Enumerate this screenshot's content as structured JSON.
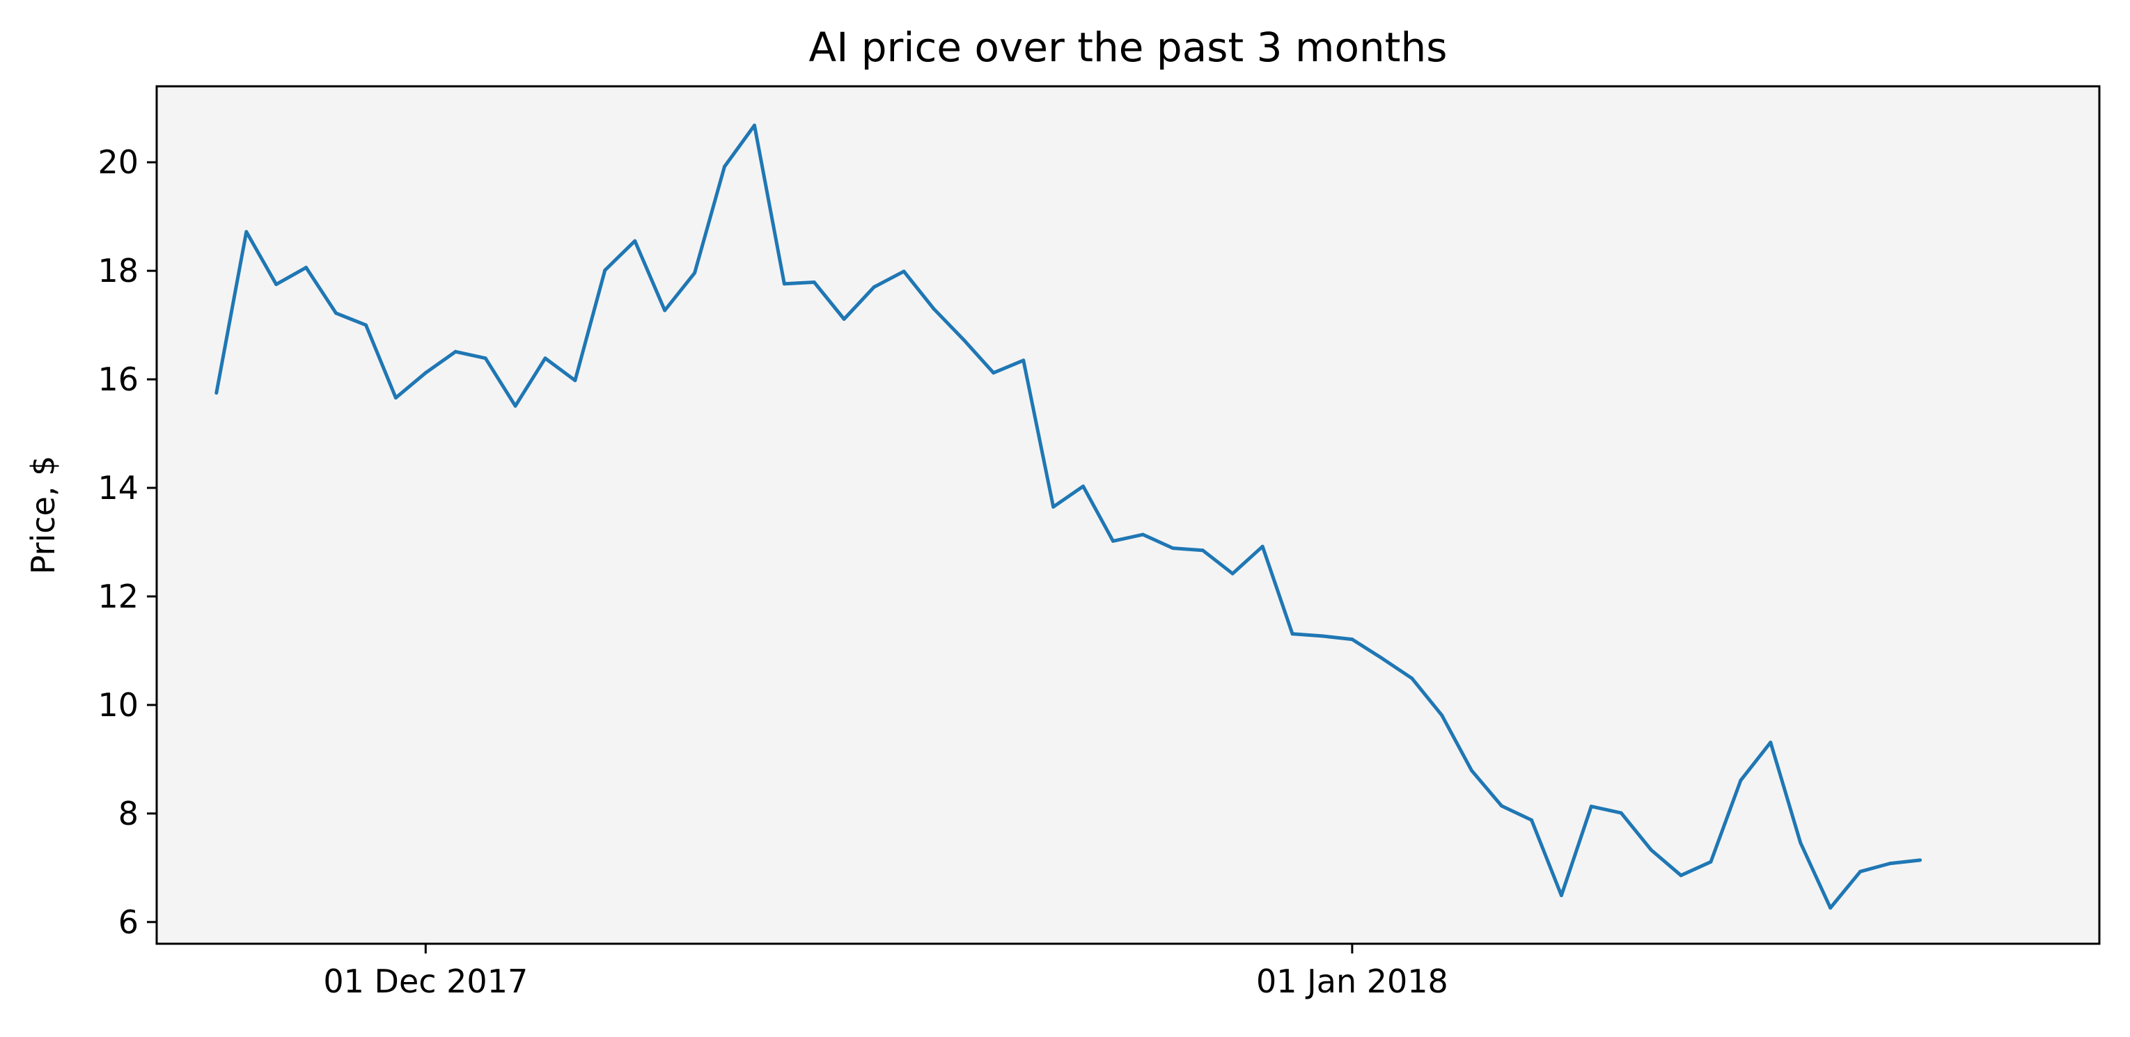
{
  "chart_data": {
    "type": "line",
    "title": "AI price over the past 3 months",
    "xlabel": "",
    "ylabel": "Price, $",
    "xlim": [
      "2017-11-22",
      "2018-01-26"
    ],
    "ylim": [
      5.6,
      21.4
    ],
    "x_ticks": [
      {
        "value": "2017-12-01",
        "label": "01 Dec 2017"
      },
      {
        "value": "2018-01-01",
        "label": "01 Jan 2018"
      }
    ],
    "y_ticks": [
      6,
      8,
      10,
      12,
      14,
      16,
      18,
      20
    ],
    "grid": false,
    "legend": "none",
    "colors": {
      "line": "#1f77b4",
      "plot_background": "#f4f4f4",
      "axes": "#000000"
    },
    "series": [
      {
        "x": [
          "2017-11-24",
          "2017-11-25",
          "2017-11-26",
          "2017-11-27",
          "2017-11-28",
          "2017-11-29",
          "2017-11-30",
          "2017-12-01",
          "2017-12-02",
          "2017-12-03",
          "2017-12-04",
          "2017-12-05",
          "2017-12-06",
          "2017-12-07",
          "2017-12-08",
          "2017-12-09",
          "2017-12-10",
          "2017-12-11",
          "2017-12-12",
          "2017-12-13",
          "2017-12-14",
          "2017-12-15",
          "2017-12-16",
          "2017-12-17",
          "2017-12-18",
          "2017-12-19",
          "2017-12-20",
          "2017-12-21",
          "2017-12-22",
          "2017-12-23",
          "2017-12-24",
          "2017-12-25",
          "2017-12-26",
          "2017-12-27",
          "2017-12-28",
          "2017-12-29",
          "2017-12-30",
          "2017-12-31",
          "2018-01-01",
          "2018-01-02",
          "2018-01-03",
          "2018-01-04",
          "2018-01-05",
          "2018-01-06",
          "2018-01-07",
          "2018-01-08",
          "2018-01-09",
          "2018-01-10",
          "2018-01-11",
          "2018-01-12",
          "2018-01-13",
          "2018-01-14",
          "2018-01-15",
          "2018-01-16",
          "2018-01-17",
          "2018-01-18",
          "2018-01-19",
          "2018-01-20"
        ],
        "values": [
          15.75,
          18.72,
          17.75,
          18.06,
          17.22,
          17.0,
          15.66,
          16.12,
          16.51,
          16.39,
          15.51,
          16.39,
          15.98,
          18.01,
          18.55,
          17.27,
          17.96,
          19.92,
          20.68,
          17.76,
          17.79,
          17.11,
          17.7,
          17.99,
          17.3,
          16.73,
          16.12,
          16.35,
          13.65,
          14.03,
          13.02,
          13.14,
          12.89,
          12.85,
          12.42,
          12.92,
          11.31,
          11.27,
          11.21,
          10.86,
          10.49,
          9.81,
          8.79,
          8.14,
          7.88,
          6.49,
          8.13,
          8.01,
          7.33,
          6.86,
          7.11,
          8.61,
          9.31,
          7.46,
          6.26,
          6.93,
          7.08,
          7.14
        ]
      }
    ]
  }
}
